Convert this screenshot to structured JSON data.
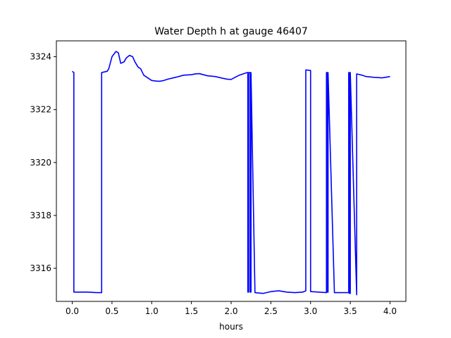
{
  "chart_data": {
    "type": "line",
    "title": "Water Depth h at gauge 46407",
    "xlabel": "hours",
    "ylabel": "",
    "xlim": [
      -0.2,
      4.2
    ],
    "ylim": [
      3314.75,
      3324.6
    ],
    "xticks": [
      0.0,
      0.5,
      1.0,
      1.5,
      2.0,
      2.5,
      3.0,
      3.5,
      4.0
    ],
    "xtick_labels": [
      "0.0",
      "0.5",
      "1.0",
      "1.5",
      "2.0",
      "2.5",
      "3.0",
      "3.5",
      "4.0"
    ],
    "yticks": [
      3316,
      3318,
      3320,
      3322,
      3324
    ],
    "ytick_labels": [
      "3316",
      "3318",
      "3320",
      "3322",
      "3324"
    ],
    "grid": false,
    "series": [
      {
        "color": "#0000ff",
        "x": [
          0.0,
          0.02,
          0.02,
          0.1,
          0.2,
          0.3,
          0.37,
          0.37,
          0.44,
          0.46,
          0.5,
          0.55,
          0.58,
          0.61,
          0.65,
          0.68,
          0.72,
          0.76,
          0.79,
          0.83,
          0.86,
          0.9,
          0.95,
          1.0,
          1.05,
          1.1,
          1.15,
          1.2,
          1.3,
          1.4,
          1.5,
          1.55,
          1.6,
          1.65,
          1.7,
          1.8,
          1.9,
          1.95,
          2.0,
          2.1,
          2.2,
          2.21,
          2.21,
          2.22,
          2.22,
          2.24,
          2.24,
          2.25,
          2.25,
          2.3,
          2.4,
          2.5,
          2.6,
          2.7,
          2.8,
          2.9,
          2.94,
          2.94,
          3.0,
          3.0,
          3.1,
          3.2,
          3.2,
          3.21,
          3.21,
          3.22,
          3.22,
          3.3,
          3.4,
          3.48,
          3.48,
          3.49,
          3.49,
          3.5,
          3.5,
          3.58,
          3.58,
          3.65,
          3.7,
          3.8,
          3.9,
          4.0
        ],
        "y": [
          3323.45,
          3323.4,
          3315.1,
          3315.1,
          3315.1,
          3315.08,
          3315.08,
          3323.4,
          3323.45,
          3323.55,
          3324.0,
          3324.2,
          3324.15,
          3323.75,
          3323.8,
          3323.95,
          3324.05,
          3324.0,
          3323.8,
          3323.6,
          3323.55,
          3323.3,
          3323.2,
          3323.1,
          3323.08,
          3323.07,
          3323.1,
          3323.15,
          3323.22,
          3323.3,
          3323.32,
          3323.35,
          3323.36,
          3323.32,
          3323.28,
          3323.25,
          3323.18,
          3323.15,
          3323.14,
          3323.3,
          3323.4,
          3323.4,
          3315.1,
          3315.1,
          3323.4,
          3323.4,
          3315.1,
          3315.1,
          3323.4,
          3315.08,
          3315.05,
          3315.12,
          3315.15,
          3315.1,
          3315.08,
          3315.1,
          3315.15,
          3323.5,
          3323.48,
          3315.12,
          3315.1,
          3315.08,
          3323.4,
          3323.4,
          3315.1,
          3315.1,
          3323.4,
          3315.08,
          3315.08,
          3315.08,
          3323.4,
          3323.4,
          3315.05,
          3315.05,
          3323.4,
          3315.0,
          3323.35,
          3323.3,
          3323.25,
          3323.22,
          3323.2,
          3323.25
        ]
      }
    ]
  }
}
